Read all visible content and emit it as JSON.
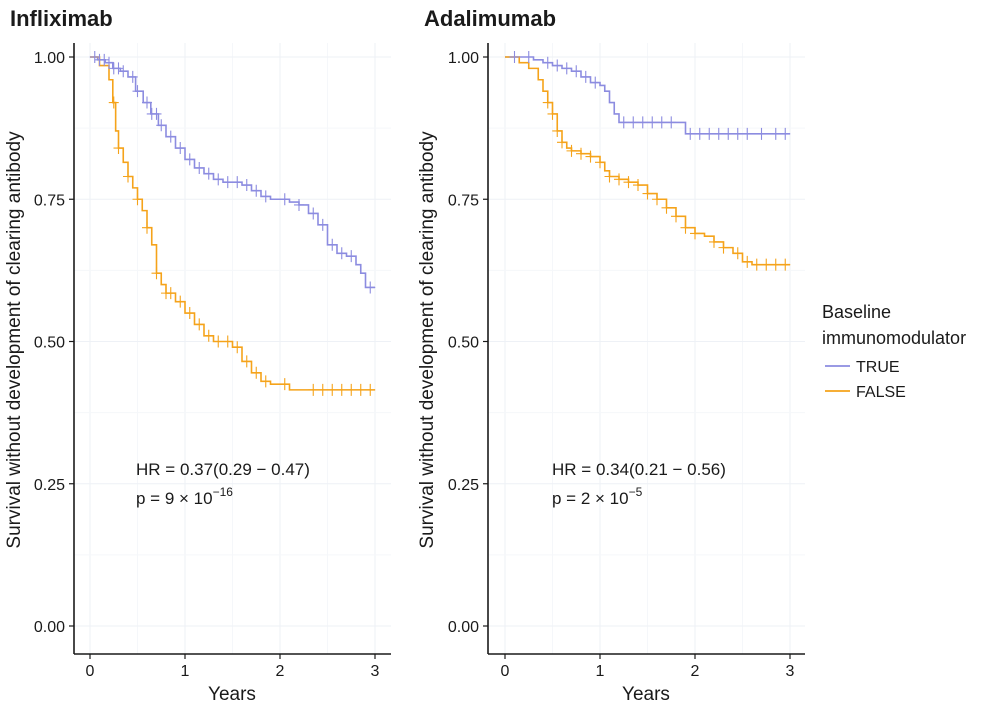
{
  "chart_data": [
    {
      "type": "line",
      "title": "Infliximab",
      "xlabel": "Years",
      "ylabel": "Survival without development of clearing antibody",
      "xlim": [
        0,
        3
      ],
      "ylim": [
        0,
        1
      ],
      "x_ticks": [
        "0",
        "1",
        "2",
        "3"
      ],
      "y_ticks": [
        "0.00",
        "0.25",
        "0.50",
        "0.75",
        "1.00"
      ],
      "grid": true,
      "annotation": {
        "hr_prefix": "HR = ",
        "hr_value": "0.37",
        "hr_ci": "(0.29 − 0.47)",
        "p_prefix": "p = ",
        "p_mantissa": "9 × 10",
        "p_exponent": "−16"
      },
      "series": [
        {
          "name": "TRUE",
          "color": "#8c8ce0",
          "points": [
            [
              0,
              1.0
            ],
            [
              0.08,
              0.995
            ],
            [
              0.16,
              0.99
            ],
            [
              0.24,
              0.98
            ],
            [
              0.32,
              0.975
            ],
            [
              0.4,
              0.965
            ],
            [
              0.48,
              0.94
            ],
            [
              0.56,
              0.92
            ],
            [
              0.64,
              0.9
            ],
            [
              0.72,
              0.88
            ],
            [
              0.8,
              0.86
            ],
            [
              0.9,
              0.84
            ],
            [
              1.0,
              0.82
            ],
            [
              1.1,
              0.805
            ],
            [
              1.2,
              0.795
            ],
            [
              1.3,
              0.785
            ],
            [
              1.4,
              0.78
            ],
            [
              1.5,
              0.78
            ],
            [
              1.6,
              0.775
            ],
            [
              1.7,
              0.765
            ],
            [
              1.8,
              0.755
            ],
            [
              1.9,
              0.75
            ],
            [
              2.0,
              0.75
            ],
            [
              2.1,
              0.745
            ],
            [
              2.2,
              0.74
            ],
            [
              2.3,
              0.725
            ],
            [
              2.4,
              0.705
            ],
            [
              2.5,
              0.67
            ],
            [
              2.6,
              0.655
            ],
            [
              2.7,
              0.65
            ],
            [
              2.8,
              0.635
            ],
            [
              2.85,
              0.62
            ],
            [
              2.9,
              0.595
            ],
            [
              3.0,
              0.595
            ]
          ],
          "censor_x": [
            0.05,
            0.1,
            0.15,
            0.2,
            0.25,
            0.3,
            0.35,
            0.45,
            0.5,
            0.6,
            0.65,
            0.7,
            0.75,
            0.85,
            0.95,
            1.05,
            1.15,
            1.25,
            1.35,
            1.45,
            1.55,
            1.65,
            1.75,
            1.85,
            2.05,
            2.2,
            2.35,
            2.45,
            2.55,
            2.65,
            2.75,
            2.95
          ]
        },
        {
          "name": "FALSE",
          "color": "#f5a31a",
          "points": [
            [
              0,
              1.0
            ],
            [
              0.1,
              0.985
            ],
            [
              0.2,
              0.96
            ],
            [
              0.24,
              0.92
            ],
            [
              0.27,
              0.87
            ],
            [
              0.3,
              0.84
            ],
            [
              0.35,
              0.815
            ],
            [
              0.4,
              0.79
            ],
            [
              0.45,
              0.77
            ],
            [
              0.5,
              0.75
            ],
            [
              0.55,
              0.73
            ],
            [
              0.6,
              0.7
            ],
            [
              0.65,
              0.67
            ],
            [
              0.7,
              0.62
            ],
            [
              0.75,
              0.6
            ],
            [
              0.8,
              0.585
            ],
            [
              0.9,
              0.57
            ],
            [
              1.0,
              0.55
            ],
            [
              1.1,
              0.53
            ],
            [
              1.2,
              0.51
            ],
            [
              1.3,
              0.5
            ],
            [
              1.4,
              0.5
            ],
            [
              1.5,
              0.49
            ],
            [
              1.6,
              0.465
            ],
            [
              1.7,
              0.445
            ],
            [
              1.8,
              0.43
            ],
            [
              1.9,
              0.425
            ],
            [
              2.0,
              0.425
            ],
            [
              2.1,
              0.415
            ],
            [
              2.2,
              0.415
            ],
            [
              2.3,
              0.415
            ],
            [
              2.4,
              0.415
            ],
            [
              2.6,
              0.415
            ],
            [
              3.0,
              0.415
            ]
          ],
          "censor_x": [
            0.25,
            0.3,
            0.4,
            0.5,
            0.6,
            0.7,
            0.8,
            0.85,
            0.95,
            1.05,
            1.15,
            1.25,
            1.35,
            1.45,
            1.55,
            1.65,
            1.75,
            1.85,
            2.05,
            2.35,
            2.45,
            2.55,
            2.65,
            2.75,
            2.85,
            2.95
          ]
        }
      ]
    },
    {
      "type": "line",
      "title": "Adalimumab",
      "xlabel": "Years",
      "ylabel": "Survival without development of clearing antibody",
      "xlim": [
        0,
        3
      ],
      "ylim": [
        0,
        1
      ],
      "x_ticks": [
        "0",
        "1",
        "2",
        "3"
      ],
      "y_ticks": [
        "0.00",
        "0.25",
        "0.50",
        "0.75",
        "1.00"
      ],
      "grid": true,
      "annotation": {
        "hr_prefix": "HR = ",
        "hr_value": "0.34",
        "hr_ci": "(0.21 − 0.56)",
        "p_prefix": "p = ",
        "p_mantissa": "2 × 10",
        "p_exponent": "−5"
      },
      "series": [
        {
          "name": "TRUE",
          "color": "#8c8ce0",
          "points": [
            [
              0,
              1.0
            ],
            [
              0.2,
              1.0
            ],
            [
              0.3,
              0.995
            ],
            [
              0.4,
              0.99
            ],
            [
              0.5,
              0.985
            ],
            [
              0.6,
              0.98
            ],
            [
              0.7,
              0.975
            ],
            [
              0.8,
              0.965
            ],
            [
              0.9,
              0.955
            ],
            [
              1.0,
              0.95
            ],
            [
              1.05,
              0.94
            ],
            [
              1.1,
              0.92
            ],
            [
              1.15,
              0.9
            ],
            [
              1.2,
              0.885
            ],
            [
              1.3,
              0.885
            ],
            [
              1.5,
              0.885
            ],
            [
              1.8,
              0.885
            ],
            [
              1.9,
              0.865
            ],
            [
              2.2,
              0.865
            ],
            [
              3.0,
              0.865
            ]
          ],
          "censor_x": [
            0.1,
            0.25,
            0.45,
            0.55,
            0.65,
            0.75,
            0.85,
            0.95,
            1.25,
            1.35,
            1.45,
            1.55,
            1.65,
            1.75,
            1.95,
            2.05,
            2.15,
            2.25,
            2.35,
            2.45,
            2.55,
            2.7,
            2.85,
            2.95
          ]
        },
        {
          "name": "FALSE",
          "color": "#f5a31a",
          "points": [
            [
              0,
              1.0
            ],
            [
              0.15,
              0.99
            ],
            [
              0.25,
              0.98
            ],
            [
              0.35,
              0.96
            ],
            [
              0.4,
              0.94
            ],
            [
              0.45,
              0.92
            ],
            [
              0.5,
              0.9
            ],
            [
              0.55,
              0.87
            ],
            [
              0.6,
              0.85
            ],
            [
              0.65,
              0.84
            ],
            [
              0.7,
              0.835
            ],
            [
              0.8,
              0.83
            ],
            [
              0.9,
              0.825
            ],
            [
              1.0,
              0.815
            ],
            [
              1.05,
              0.8
            ],
            [
              1.1,
              0.79
            ],
            [
              1.2,
              0.785
            ],
            [
              1.3,
              0.78
            ],
            [
              1.4,
              0.775
            ],
            [
              1.5,
              0.76
            ],
            [
              1.6,
              0.75
            ],
            [
              1.7,
              0.735
            ],
            [
              1.8,
              0.72
            ],
            [
              1.9,
              0.7
            ],
            [
              2.0,
              0.69
            ],
            [
              2.1,
              0.685
            ],
            [
              2.2,
              0.675
            ],
            [
              2.3,
              0.665
            ],
            [
              2.4,
              0.655
            ],
            [
              2.5,
              0.64
            ],
            [
              2.6,
              0.635
            ],
            [
              3.0,
              0.635
            ]
          ],
          "censor_x": [
            0.45,
            0.5,
            0.55,
            0.6,
            0.7,
            0.8,
            0.9,
            1.0,
            1.1,
            1.2,
            1.3,
            1.4,
            1.5,
            1.6,
            1.7,
            1.8,
            1.9,
            2.0,
            2.2,
            2.3,
            2.45,
            2.55,
            2.65,
            2.75,
            2.85,
            2.95
          ]
        }
      ]
    }
  ],
  "legend": {
    "title_line1": "Baseline",
    "title_line2": "immunomodulator",
    "items": [
      {
        "label": "TRUE",
        "color": "#8c8ce0"
      },
      {
        "label": "FALSE",
        "color": "#f5a31a"
      }
    ]
  }
}
